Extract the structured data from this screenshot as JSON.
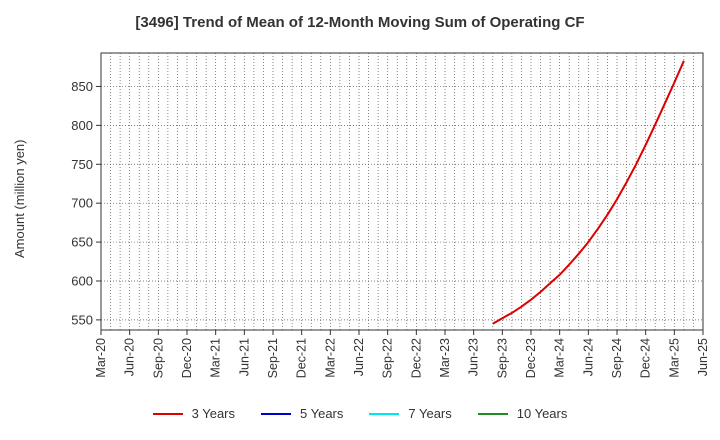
{
  "chart_data": {
    "type": "line",
    "title": "[3496]  Trend of Mean of 12-Month Moving Sum of Operating CF",
    "ylabel": "Amount (million yen)",
    "xlabel": "",
    "ylim": [
      537,
      893
    ],
    "yticks": [
      550,
      600,
      650,
      700,
      750,
      800,
      850
    ],
    "x_tick_labels": [
      "Mar-20",
      "Jun-20",
      "Sep-20",
      "Dec-20",
      "Mar-21",
      "Jun-21",
      "Sep-21",
      "Dec-21",
      "Mar-22",
      "Jun-22",
      "Sep-22",
      "Dec-22",
      "Mar-23",
      "Jun-23",
      "Sep-23",
      "Dec-23",
      "Mar-24",
      "Jun-24",
      "Sep-24",
      "Dec-24",
      "Mar-25",
      "Jun-25"
    ],
    "grid": true,
    "legend_position": "bottom",
    "series": [
      {
        "name": "3 Years",
        "color": "#dd0000",
        "points": [
          [
            "Aug-23",
            545
          ],
          [
            "Sep-23",
            552
          ],
          [
            "Oct-23",
            559
          ],
          [
            "Nov-23",
            567
          ],
          [
            "Dec-23",
            576
          ],
          [
            "Jan-24",
            586
          ],
          [
            "Feb-24",
            597
          ],
          [
            "Mar-24",
            608
          ],
          [
            "Apr-24",
            621
          ],
          [
            "May-24",
            635
          ],
          [
            "Jun-24",
            650
          ],
          [
            "Jul-24",
            667
          ],
          [
            "Aug-24",
            685
          ],
          [
            "Sep-24",
            705
          ],
          [
            "Oct-24",
            727
          ],
          [
            "Nov-24",
            750
          ],
          [
            "Dec-24",
            775
          ],
          [
            "Jan-25",
            801
          ],
          [
            "Feb-25",
            828
          ],
          [
            "Mar-25",
            855
          ],
          [
            "Apr-25",
            883
          ]
        ]
      },
      {
        "name": "5 Years",
        "color": "#0000cc",
        "points": []
      },
      {
        "name": "7 Years",
        "color": "#00e5ee",
        "points": []
      },
      {
        "name": "10 Years",
        "color": "#228b22",
        "points": []
      }
    ]
  }
}
